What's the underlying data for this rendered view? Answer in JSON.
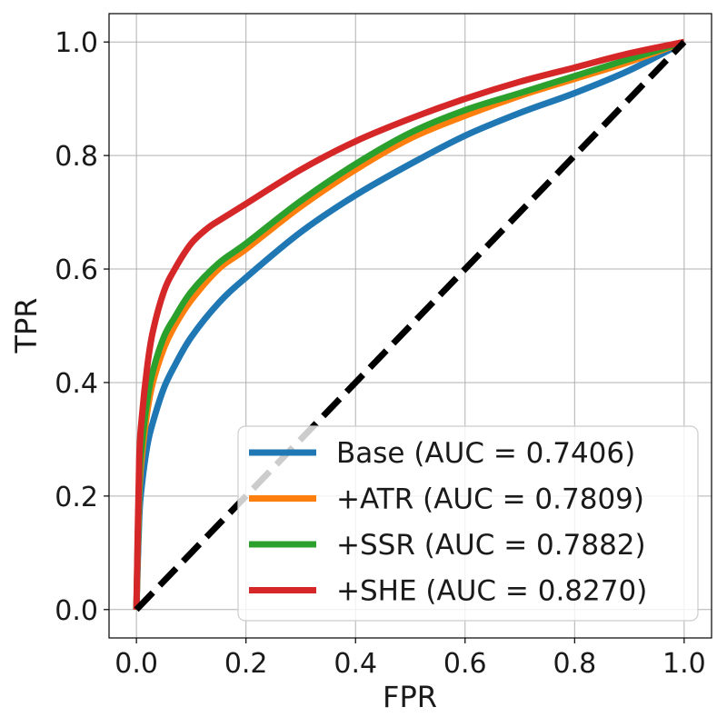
{
  "chart_data": {
    "type": "line",
    "xlabel": "FPR",
    "ylabel": "TPR",
    "xlim": [
      -0.05,
      1.05
    ],
    "ylim": [
      -0.05,
      1.05
    ],
    "xticks": [
      "0.0",
      "0.2",
      "0.4",
      "0.6",
      "0.8",
      "1.0"
    ],
    "yticks": [
      "0.0",
      "0.2",
      "0.4",
      "0.6",
      "0.8",
      "1.0"
    ],
    "grid": true,
    "legend_position": "bottom-right",
    "series": [
      {
        "name": "Base (AUC = 0.7406)",
        "color": "#1f77b4",
        "x": [
          0,
          0.005,
          0.01,
          0.02,
          0.03,
          0.05,
          0.07,
          0.1,
          0.15,
          0.2,
          0.3,
          0.4,
          0.5,
          0.6,
          0.7,
          0.8,
          0.9,
          1.0
        ],
        "y": [
          0,
          0.16,
          0.22,
          0.29,
          0.33,
          0.39,
          0.43,
          0.48,
          0.54,
          0.585,
          0.665,
          0.73,
          0.785,
          0.835,
          0.875,
          0.91,
          0.95,
          1.0
        ]
      },
      {
        "name": "+ATR (AUC = 0.7809)",
        "color": "#ff7f0e",
        "x": [
          0,
          0.005,
          0.01,
          0.02,
          0.03,
          0.05,
          0.07,
          0.1,
          0.15,
          0.2,
          0.3,
          0.4,
          0.5,
          0.6,
          0.7,
          0.8,
          0.9,
          1.0
        ],
        "y": [
          0,
          0.2,
          0.27,
          0.35,
          0.4,
          0.46,
          0.5,
          0.545,
          0.6,
          0.635,
          0.71,
          0.775,
          0.83,
          0.87,
          0.905,
          0.935,
          0.965,
          1.0
        ]
      },
      {
        "name": "+SSR (AUC = 0.7882)",
        "color": "#2ca02c",
        "x": [
          0,
          0.005,
          0.01,
          0.02,
          0.03,
          0.05,
          0.07,
          0.1,
          0.15,
          0.2,
          0.3,
          0.4,
          0.5,
          0.6,
          0.7,
          0.8,
          0.9,
          1.0
        ],
        "y": [
          0,
          0.22,
          0.29,
          0.37,
          0.42,
          0.48,
          0.515,
          0.56,
          0.61,
          0.645,
          0.72,
          0.785,
          0.84,
          0.88,
          0.91,
          0.94,
          0.97,
          1.0
        ]
      },
      {
        "name": "+SHE (AUC = 0.8270)",
        "color": "#d62728",
        "x": [
          0,
          0.005,
          0.01,
          0.02,
          0.03,
          0.05,
          0.07,
          0.1,
          0.13,
          0.15,
          0.2,
          0.3,
          0.4,
          0.5,
          0.6,
          0.7,
          0.8,
          0.9,
          1.0
        ],
        "y": [
          0,
          0.26,
          0.34,
          0.43,
          0.49,
          0.56,
          0.6,
          0.645,
          0.672,
          0.685,
          0.715,
          0.775,
          0.825,
          0.865,
          0.9,
          0.93,
          0.955,
          0.98,
          1.0
        ]
      },
      {
        "color": "#000000",
        "dashed": true,
        "x": [
          0,
          1
        ],
        "y": [
          0,
          1
        ]
      }
    ]
  }
}
